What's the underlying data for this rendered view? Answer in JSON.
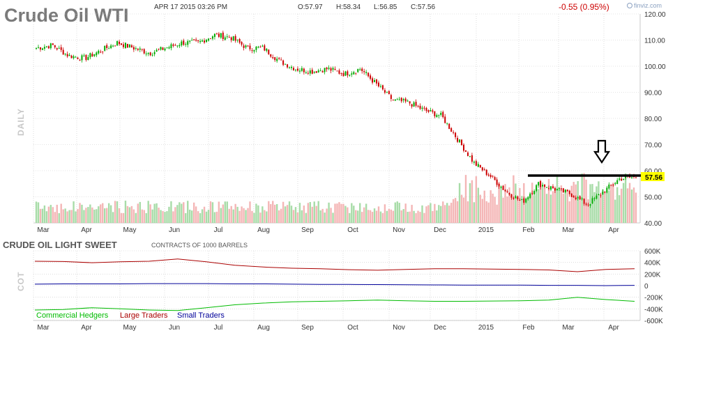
{
  "header": {
    "title": "Crude Oil WTI",
    "datetime": "APR 17 2015 03:26 PM",
    "open": "O:57.97",
    "high": "H:58.34",
    "low": "L:56.85",
    "close": "C:57.56",
    "change": "-0.55 (0.95%)",
    "brand": "finviz.com"
  },
  "colors": {
    "up": "#00aa00",
    "down": "#cc0000",
    "vol_up": "#a8dca8",
    "vol_down": "#f4b6b6",
    "grid": "#c8c8c8",
    "price_tag": "#ffff00",
    "commercial": "#00bb00",
    "large": "#aa0000",
    "small": "#000099"
  },
  "price_panel": {
    "side_label": "DAILY",
    "last_price_tag": "57.56",
    "y_ticks": [
      "120.00",
      "110.00",
      "100.00",
      "90.00",
      "80.00",
      "70.00",
      "60.00",
      "50.00",
      "40.00"
    ]
  },
  "cot_panel": {
    "title": "CRUDE OIL LIGHT SWEET",
    "subtitle": "CONTRACTS OF 1000 BARRELS",
    "side_label": "COT",
    "y_ticks": [
      "600K",
      "400K",
      "200K",
      "0",
      "-200K",
      "-400K",
      "-600K"
    ],
    "legend": [
      {
        "name": "Commercial Hedgers",
        "color": "#00bb00"
      },
      {
        "name": "Large Traders",
        "color": "#aa0000"
      },
      {
        "name": "Small Traders",
        "color": "#000099"
      }
    ]
  },
  "x_labels": [
    "Mar",
    "Apr",
    "May",
    "Jun",
    "Jul",
    "Aug",
    "Sep",
    "Oct",
    "Nov",
    "Dec",
    "2015",
    "Feb",
    "Mar",
    "Apr"
  ],
  "chart_data": [
    {
      "type": "line",
      "chart_kind": "candlestick",
      "x_labels": [
        "Mar",
        "Apr",
        "May",
        "Jun",
        "Jul",
        "Aug",
        "Sep",
        "Oct",
        "Nov",
        "Dec",
        "2015",
        "Feb",
        "Mar",
        "Apr"
      ],
      "ylim": [
        40,
        120
      ],
      "series": [
        {
          "values": [
            107,
            108,
            104,
            103,
            106,
            109,
            107,
            105,
            107,
            109,
            109,
            112,
            111,
            107,
            107,
            102,
            99,
            98,
            99,
            97,
            99,
            93,
            87,
            86,
            83,
            81,
            72,
            63,
            58,
            52,
            48,
            55,
            53,
            51,
            47,
            52,
            57,
            57.56
          ]
        }
      ],
      "annotations": [
        "resistance-line",
        "down-arrow",
        "last-price 57.56"
      ]
    },
    {
      "type": "line",
      "x_labels": [
        "Mar",
        "Apr",
        "May",
        "Jun",
        "Jul",
        "Aug",
        "Sep",
        "Oct",
        "Nov",
        "Dec",
        "2015",
        "Feb",
        "Mar",
        "Apr"
      ],
      "ylim": [
        -600000,
        600000
      ],
      "series": [
        {
          "name": "Large Traders",
          "values": [
            420000,
            415000,
            395000,
            410000,
            420000,
            460000,
            410000,
            350000,
            320000,
            300000,
            290000,
            275000,
            265000,
            280000,
            290000,
            290000,
            285000,
            280000,
            270000,
            240000,
            280000,
            290000
          ]
        },
        {
          "name": "Small Traders",
          "values": [
            25000,
            30000,
            30000,
            30000,
            35000,
            35000,
            35000,
            30000,
            30000,
            25000,
            22000,
            20000,
            18000,
            15000,
            12000,
            10000,
            10000,
            8000,
            5000,
            5000,
            0,
            5000
          ]
        },
        {
          "name": "Commercial Hedgers",
          "values": [
            -420000,
            -410000,
            -380000,
            -400000,
            -420000,
            -430000,
            -380000,
            -330000,
            -300000,
            -280000,
            -270000,
            -260000,
            -250000,
            -260000,
            -270000,
            -270000,
            -265000,
            -260000,
            -250000,
            -200000,
            -240000,
            -270000
          ]
        }
      ]
    }
  ]
}
